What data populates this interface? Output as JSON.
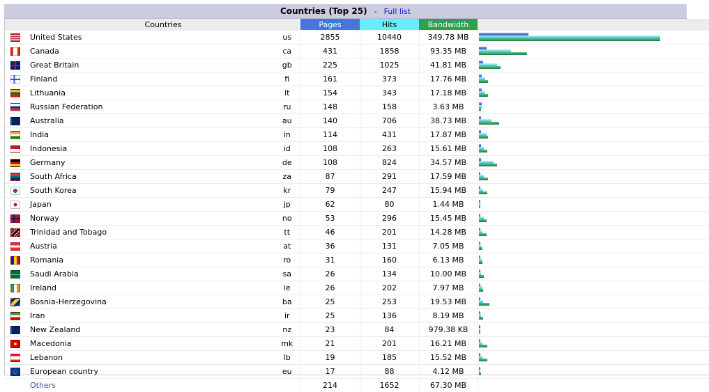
{
  "header": {
    "title": "Countries (Top 25)",
    "separator": "-",
    "full_list_label": "Full list"
  },
  "columns": {
    "countries": "Countries",
    "pages": "Pages",
    "hits": "Hits",
    "bandwidth": "Bandwidth"
  },
  "colors": {
    "pages": "#4477dd",
    "hits": "#66eeff",
    "bandwidth": "#2ea04f"
  },
  "rows": [
    {
      "country": "United States",
      "code": "us",
      "pages": 2855,
      "hits": 10440,
      "bandwidth": "349.78 MB",
      "bw_mb": 349.78,
      "flag": "us-flag-icon"
    },
    {
      "country": "Canada",
      "code": "ca",
      "pages": 431,
      "hits": 1858,
      "bandwidth": "93.35 MB",
      "bw_mb": 93.35,
      "flag": "ca-flag-icon"
    },
    {
      "country": "Great Britain",
      "code": "gb",
      "pages": 225,
      "hits": 1025,
      "bandwidth": "41.81 MB",
      "bw_mb": 41.81,
      "flag": "gb-flag-icon"
    },
    {
      "country": "Finland",
      "code": "fi",
      "pages": 161,
      "hits": 373,
      "bandwidth": "17.76 MB",
      "bw_mb": 17.76,
      "flag": "fi-flag-icon"
    },
    {
      "country": "Lithuania",
      "code": "lt",
      "pages": 154,
      "hits": 343,
      "bandwidth": "17.18 MB",
      "bw_mb": 17.18,
      "flag": "lt-flag-icon"
    },
    {
      "country": "Russian Federation",
      "code": "ru",
      "pages": 148,
      "hits": 158,
      "bandwidth": "3.63 MB",
      "bw_mb": 3.63,
      "flag": "ru-flag-icon"
    },
    {
      "country": "Australia",
      "code": "au",
      "pages": 140,
      "hits": 706,
      "bandwidth": "38.73 MB",
      "bw_mb": 38.73,
      "flag": "au-flag-icon"
    },
    {
      "country": "India",
      "code": "in",
      "pages": 114,
      "hits": 431,
      "bandwidth": "17.87 MB",
      "bw_mb": 17.87,
      "flag": "in-flag-icon"
    },
    {
      "country": "Indonesia",
      "code": "id",
      "pages": 108,
      "hits": 263,
      "bandwidth": "15.61 MB",
      "bw_mb": 15.61,
      "flag": "id-flag-icon"
    },
    {
      "country": "Germany",
      "code": "de",
      "pages": 108,
      "hits": 824,
      "bandwidth": "34.57 MB",
      "bw_mb": 34.57,
      "flag": "de-flag-icon"
    },
    {
      "country": "South Africa",
      "code": "za",
      "pages": 87,
      "hits": 291,
      "bandwidth": "17.59 MB",
      "bw_mb": 17.59,
      "flag": "za-flag-icon"
    },
    {
      "country": "South Korea",
      "code": "kr",
      "pages": 79,
      "hits": 247,
      "bandwidth": "15.94 MB",
      "bw_mb": 15.94,
      "flag": "kr-flag-icon"
    },
    {
      "country": "Japan",
      "code": "jp",
      "pages": 62,
      "hits": 80,
      "bandwidth": "1.44 MB",
      "bw_mb": 1.44,
      "flag": "jp-flag-icon"
    },
    {
      "country": "Norway",
      "code": "no",
      "pages": 53,
      "hits": 296,
      "bandwidth": "15.45 MB",
      "bw_mb": 15.45,
      "flag": "no-flag-icon"
    },
    {
      "country": "Trinidad and Tobago",
      "code": "tt",
      "pages": 46,
      "hits": 201,
      "bandwidth": "14.28 MB",
      "bw_mb": 14.28,
      "flag": "tt-flag-icon"
    },
    {
      "country": "Austria",
      "code": "at",
      "pages": 36,
      "hits": 131,
      "bandwidth": "7.05 MB",
      "bw_mb": 7.05,
      "flag": "at-flag-icon"
    },
    {
      "country": "Romania",
      "code": "ro",
      "pages": 31,
      "hits": 160,
      "bandwidth": "6.13 MB",
      "bw_mb": 6.13,
      "flag": "ro-flag-icon"
    },
    {
      "country": "Saudi Arabia",
      "code": "sa",
      "pages": 26,
      "hits": 134,
      "bandwidth": "10.00 MB",
      "bw_mb": 10.0,
      "flag": "sa-flag-icon"
    },
    {
      "country": "Ireland",
      "code": "ie",
      "pages": 26,
      "hits": 202,
      "bandwidth": "7.97 MB",
      "bw_mb": 7.97,
      "flag": "ie-flag-icon"
    },
    {
      "country": "Bosnia-Herzegovina",
      "code": "ba",
      "pages": 25,
      "hits": 253,
      "bandwidth": "19.53 MB",
      "bw_mb": 19.53,
      "flag": "ba-flag-icon"
    },
    {
      "country": "Iran",
      "code": "ir",
      "pages": 25,
      "hits": 136,
      "bandwidth": "8.19 MB",
      "bw_mb": 8.19,
      "flag": "ir-flag-icon"
    },
    {
      "country": "New Zealand",
      "code": "nz",
      "pages": 23,
      "hits": 84,
      "bandwidth": "979.38 KB",
      "bw_mb": 0.956,
      "flag": "nz-flag-icon"
    },
    {
      "country": "Macedonia",
      "code": "mk",
      "pages": 21,
      "hits": 201,
      "bandwidth": "16.21 MB",
      "bw_mb": 16.21,
      "flag": "mk-flag-icon"
    },
    {
      "country": "Lebanon",
      "code": "lb",
      "pages": 19,
      "hits": 185,
      "bandwidth": "15.52 MB",
      "bw_mb": 15.52,
      "flag": "lb-flag-icon"
    },
    {
      "country": "European country",
      "code": "eu",
      "pages": 17,
      "hits": 88,
      "bandwidth": "4.12 MB",
      "bw_mb": 4.12,
      "flag": "eu-flag-icon"
    }
  ],
  "others": {
    "label": "Others",
    "pages": 214,
    "hits": 1652,
    "bandwidth": "67.30 MB"
  }
}
